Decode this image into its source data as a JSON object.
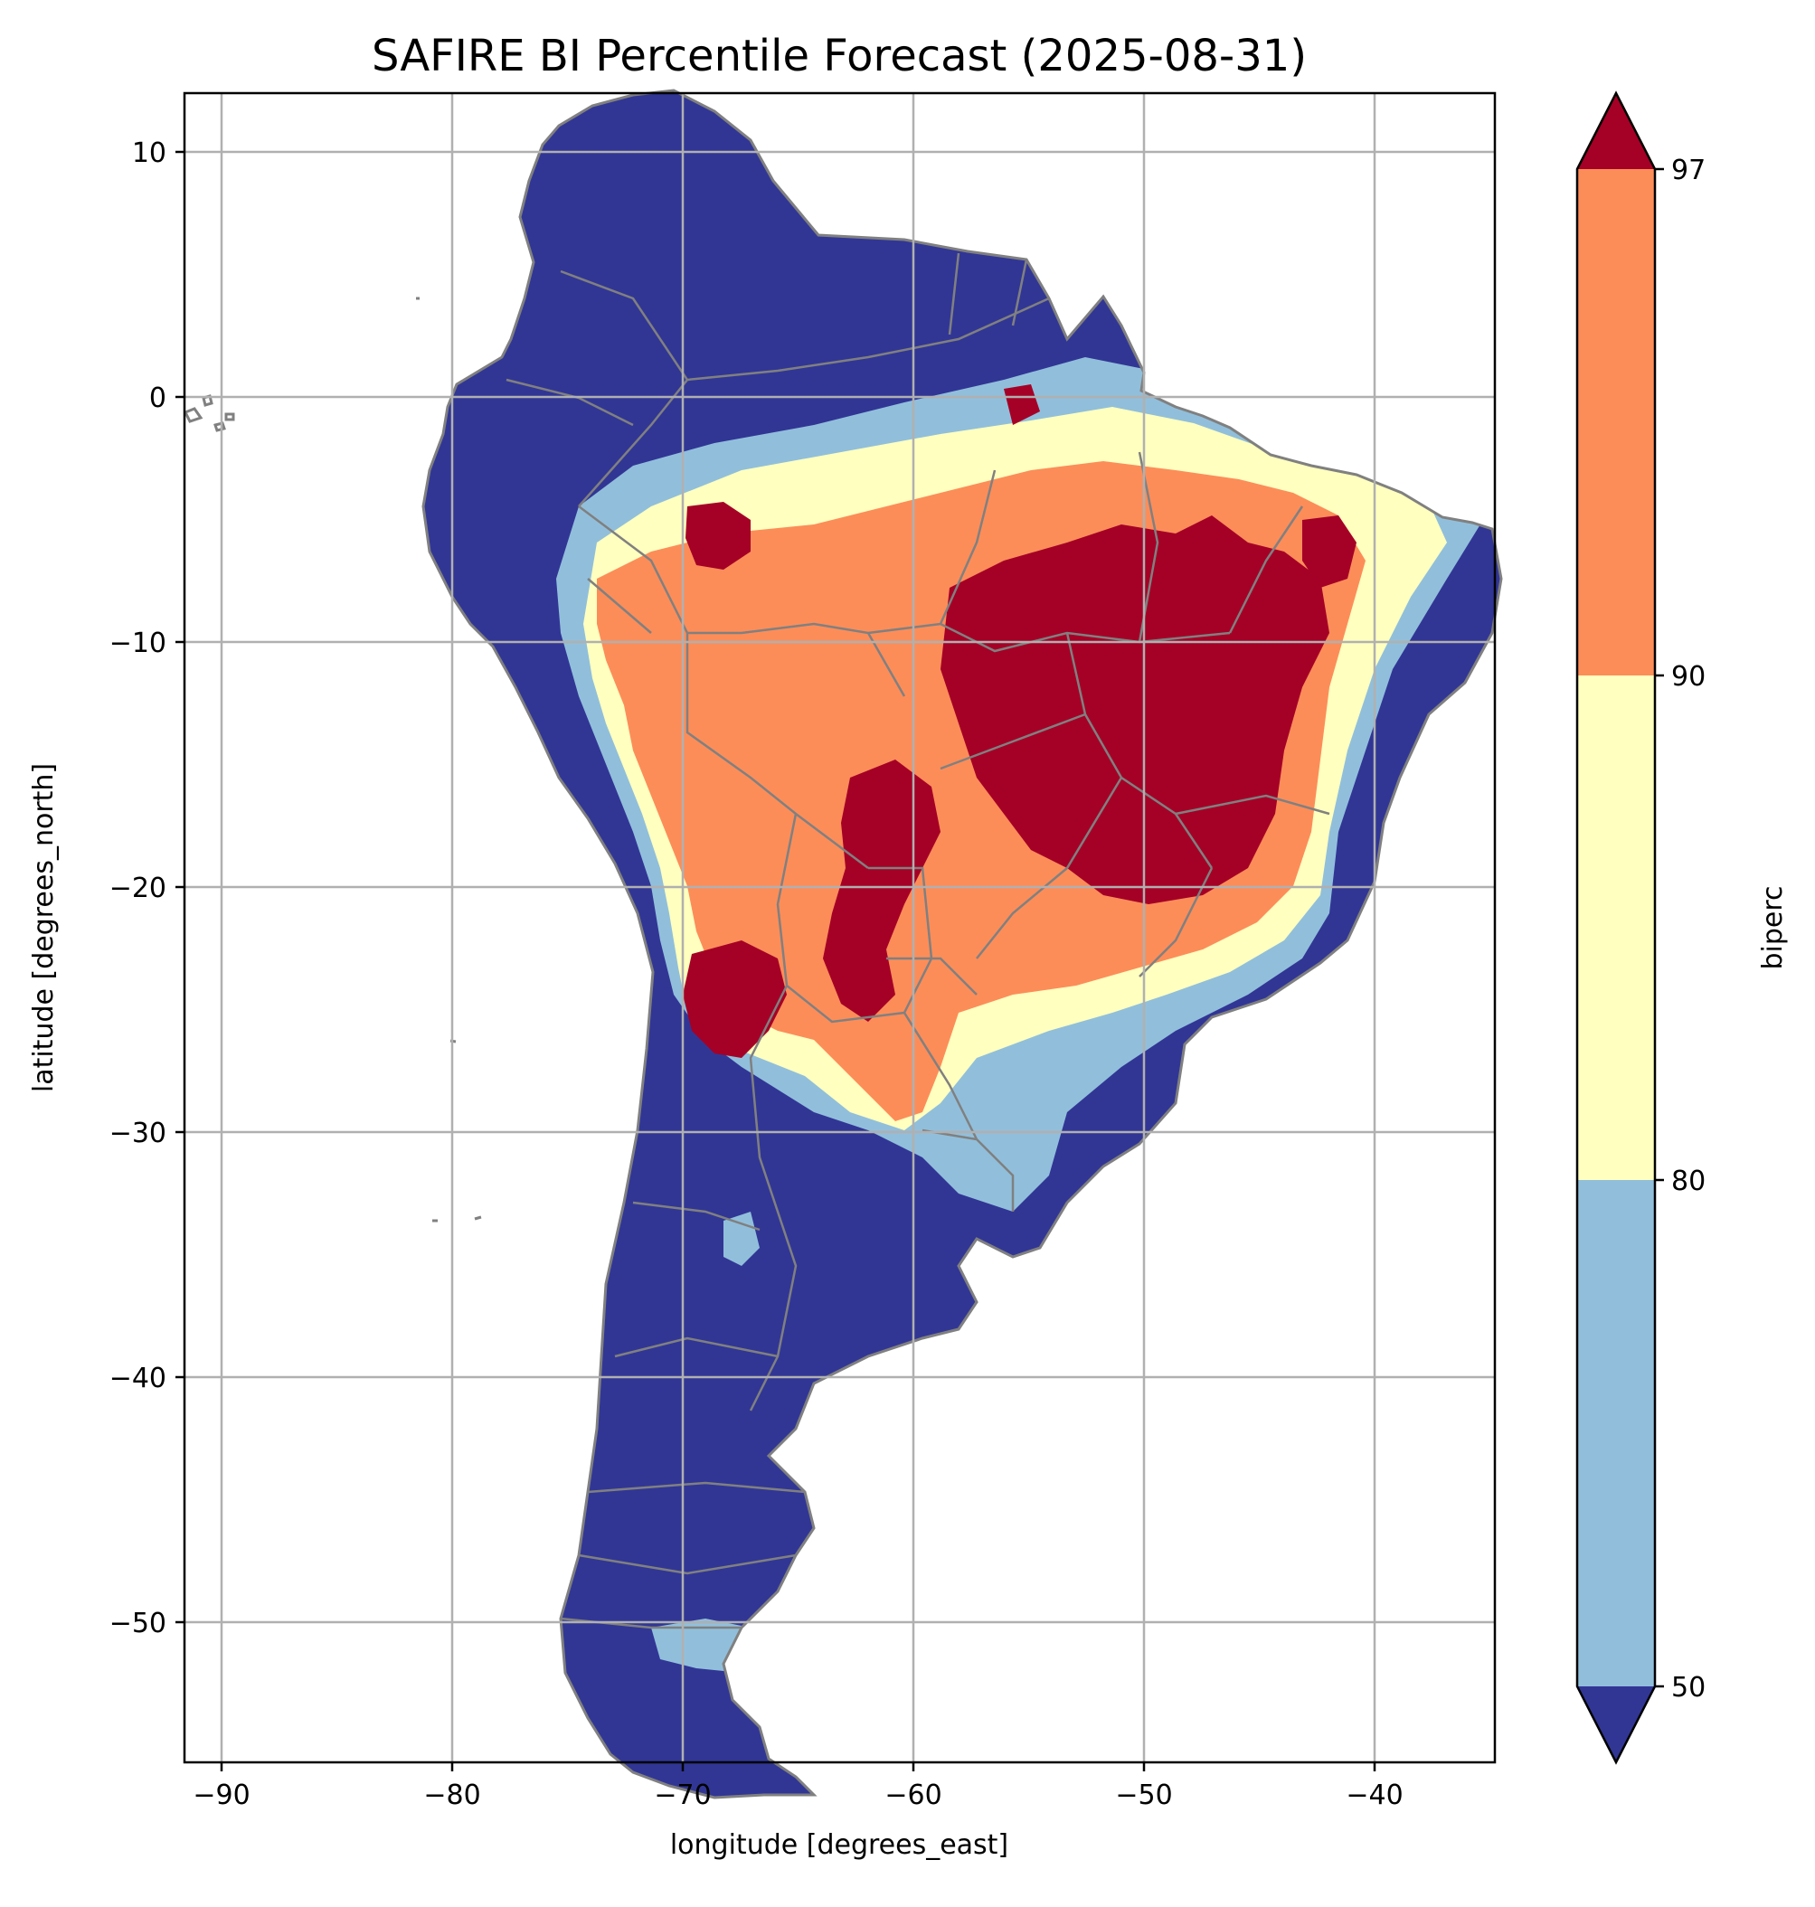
{
  "title": "SAFIRE BI Percentile Forecast (2025-08-31)",
  "chart_data": {
    "type": "heatmap",
    "title": "SAFIRE BI Percentile Forecast (2025-08-31)",
    "xlabel": "longitude [degrees_east]",
    "ylabel": "latitude [degrees_north]",
    "xlim": [
      -91.6,
      -35
    ],
    "ylim": [
      -55.9,
      12.4
    ],
    "x_ticks": [
      -90,
      -80,
      -70,
      -60,
      -50,
      -40
    ],
    "x_tick_labels": [
      "−90",
      "−80",
      "−70",
      "−60",
      "−50",
      "−40"
    ],
    "y_ticks": [
      10,
      0,
      -10,
      -20,
      -30,
      -40,
      -50
    ],
    "y_tick_labels": [
      "10",
      "0",
      "−10",
      "−20",
      "−30",
      "−40",
      "−50"
    ],
    "grid": true,
    "region": "South America",
    "colorbar": {
      "label": "biperc",
      "ticks": [
        50,
        80,
        90,
        97
      ],
      "tick_labels": [
        "50",
        "80",
        "90",
        "97"
      ],
      "extend": "both",
      "bins": [
        {
          "range": "<50",
          "color": "#313695"
        },
        {
          "range": "50-80",
          "color": "#91bfdb"
        },
        {
          "range": "80-90",
          "color": "#ffffbf"
        },
        {
          "range": "90-97",
          "color": "#fc8d59"
        },
        {
          "range": ">97",
          "color": "#a50026"
        }
      ]
    },
    "border_color": "#808080",
    "grid_color": "#b0b0b0"
  }
}
